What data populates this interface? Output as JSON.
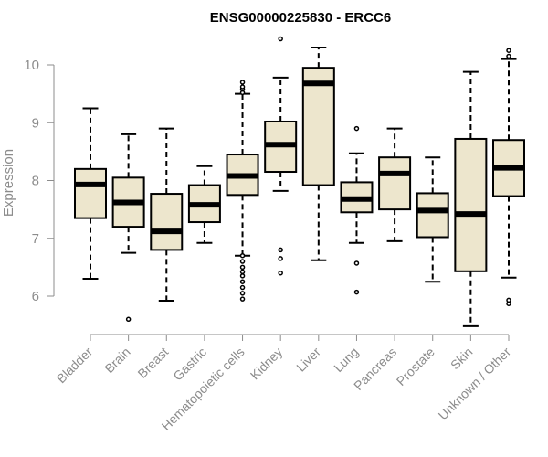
{
  "chart_data": {
    "type": "box",
    "title": "ENSG00000225830 - ERCC6",
    "xlabel": "",
    "ylabel": "Expression",
    "ylim": [
      5.3,
      10.6
    ],
    "yticks": [
      6,
      7,
      8,
      9,
      10
    ],
    "box_fill": "#ede6cd",
    "line_color": "#000000",
    "axis_color": "#8c8c8c",
    "categories": [
      "Bladder",
      "Brain",
      "Breast",
      "Gastric",
      "Hematopoietic cells",
      "Kidney",
      "Liver",
      "Lung",
      "Pancreas",
      "Prostate",
      "Skin",
      "Unknown / Other"
    ],
    "boxes": [
      {
        "whisker_low": 6.3,
        "q1": 7.35,
        "median": 7.93,
        "q3": 8.2,
        "whisker_high": 9.25,
        "outliers": []
      },
      {
        "whisker_low": 6.75,
        "q1": 7.2,
        "median": 7.62,
        "q3": 8.05,
        "whisker_high": 8.8,
        "outliers": [
          5.6
        ]
      },
      {
        "whisker_low": 5.92,
        "q1": 6.8,
        "median": 7.12,
        "q3": 7.77,
        "whisker_high": 8.9,
        "outliers": []
      },
      {
        "whisker_low": 6.92,
        "q1": 7.28,
        "median": 7.58,
        "q3": 7.92,
        "whisker_high": 8.25,
        "outliers": []
      },
      {
        "whisker_low": 6.7,
        "q1": 7.75,
        "median": 8.08,
        "q3": 8.45,
        "whisker_high": 9.5,
        "outliers": [
          5.95,
          6.05,
          6.15,
          6.25,
          6.35,
          6.42,
          6.5,
          6.6,
          6.7,
          9.52,
          9.58,
          9.62,
          9.7
        ]
      },
      {
        "whisker_low": 7.82,
        "q1": 8.15,
        "median": 8.62,
        "q3": 9.02,
        "whisker_high": 9.78,
        "outliers": [
          6.4,
          6.65,
          6.8,
          10.45
        ]
      },
      {
        "whisker_low": 6.62,
        "q1": 7.92,
        "median": 9.68,
        "q3": 9.95,
        "whisker_high": 10.3,
        "outliers": []
      },
      {
        "whisker_low": 6.92,
        "q1": 7.45,
        "median": 7.68,
        "q3": 7.97,
        "whisker_high": 8.47,
        "outliers": [
          6.07,
          6.57,
          8.9
        ]
      },
      {
        "whisker_low": 6.95,
        "q1": 7.5,
        "median": 8.12,
        "q3": 8.4,
        "whisker_high": 8.9,
        "outliers": []
      },
      {
        "whisker_low": 6.25,
        "q1": 7.02,
        "median": 7.48,
        "q3": 7.78,
        "whisker_high": 8.4,
        "outliers": []
      },
      {
        "whisker_low": 5.48,
        "q1": 6.43,
        "median": 7.42,
        "q3": 8.72,
        "whisker_high": 9.88,
        "outliers": []
      },
      {
        "whisker_low": 6.32,
        "q1": 7.73,
        "median": 8.22,
        "q3": 8.7,
        "whisker_high": 10.1,
        "outliers": [
          5.87,
          5.93,
          10.15,
          10.25
        ]
      }
    ]
  }
}
